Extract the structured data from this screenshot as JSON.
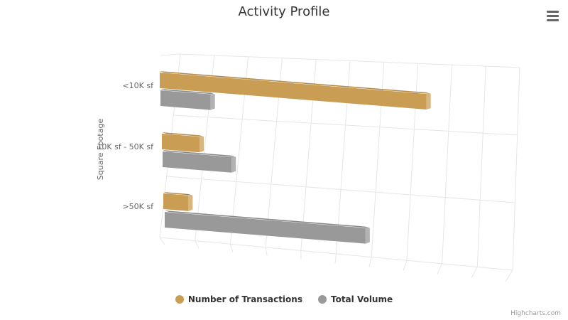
{
  "chart_data": {
    "type": "bar",
    "orientation": "horizontal",
    "three_d": true,
    "title": "Activity Profile",
    "xlabel": "Square Footage",
    "ylabel": "",
    "categories": [
      "<10K sf",
      "10K sf - 50K sf",
      ">50K sf"
    ],
    "series": [
      {
        "name": "Number of Transactions",
        "color": "#C99D54",
        "values": [
          85,
          12,
          8
        ]
      },
      {
        "name": "Total Volume",
        "color": "#999999",
        "values": [
          16,
          22,
          64
        ]
      }
    ],
    "value_axis": {
      "min": 0,
      "max": 100,
      "tick_interval": 10,
      "labels_shown": false
    },
    "grid": true,
    "legend": "bottom-center"
  },
  "ui": {
    "menu_icon": "hamburger-menu-icon",
    "credits": "Highcharts.com"
  }
}
